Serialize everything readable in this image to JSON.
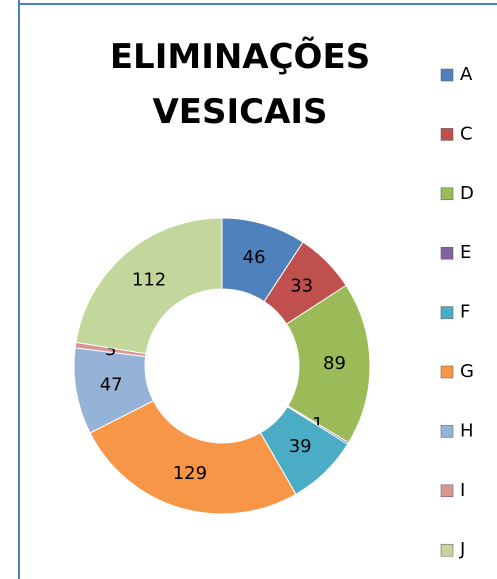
{
  "chart_data": {
    "type": "donut",
    "title": "ELIMINAÇÕES VESICAIS",
    "categories": [
      "A",
      "C",
      "D",
      "E",
      "F",
      "G",
      "H",
      "I",
      "J"
    ],
    "values": [
      46,
      33,
      89,
      1,
      39,
      129,
      47,
      3,
      112
    ],
    "colors": [
      "#4f81bd",
      "#c0504d",
      "#9bbb59",
      "#8064a2",
      "#4bacc6",
      "#f79646",
      "#95b3d7",
      "#d99694",
      "#c3d69b"
    ],
    "legend": "right"
  }
}
